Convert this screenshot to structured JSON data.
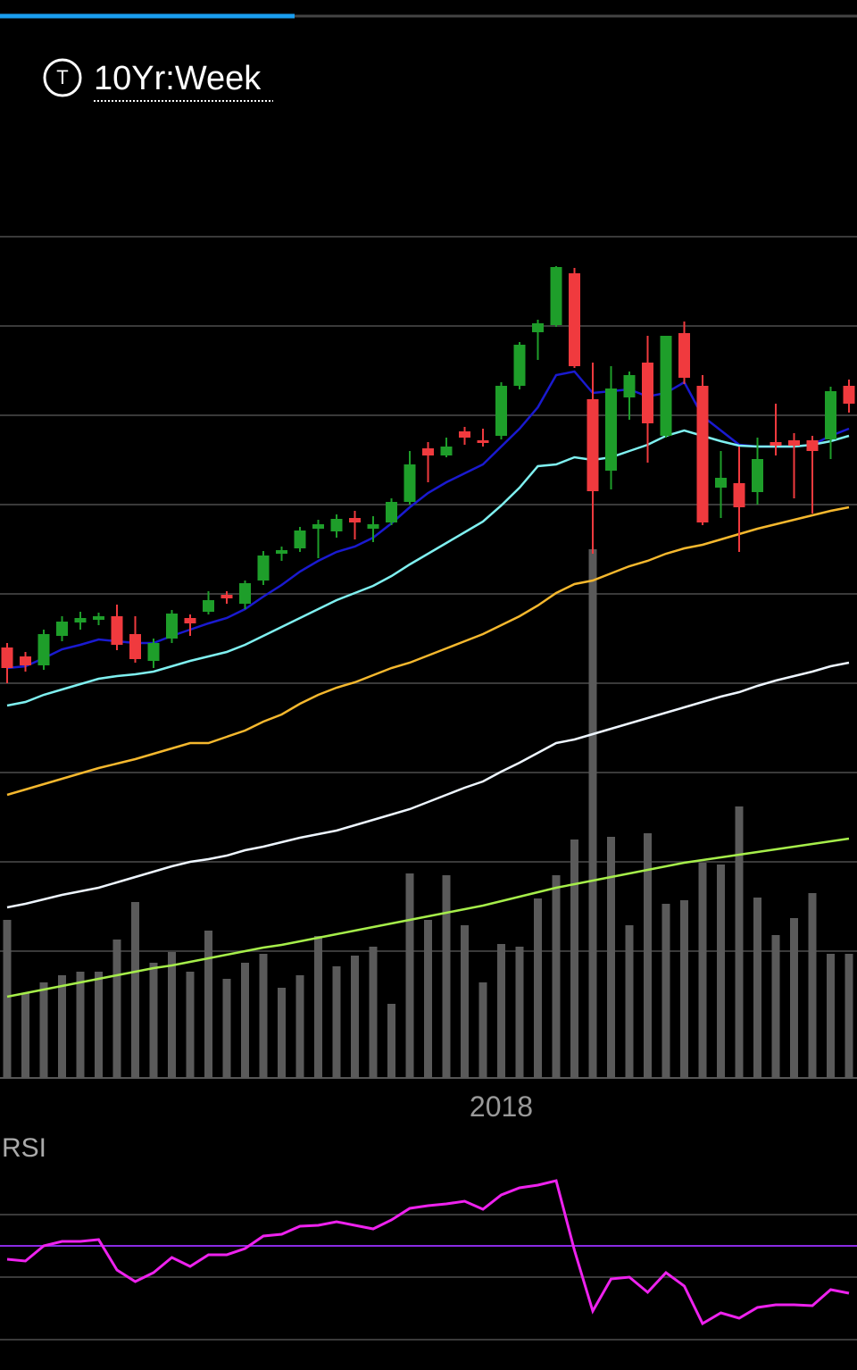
{
  "header": {
    "icon": "T",
    "period": "10Yr:Week"
  },
  "chart_data": [
    {
      "type": "candlestick",
      "categories": [
        null,
        null,
        null,
        null,
        null,
        null,
        null,
        null,
        null,
        null,
        null,
        null,
        null,
        null,
        null,
        null,
        null,
        null,
        null,
        null,
        null,
        null,
        null,
        null,
        null,
        null,
        null,
        "2018",
        null,
        null,
        null,
        null,
        null,
        null,
        null,
        null,
        null,
        null,
        null,
        null,
        null,
        null,
        null,
        null,
        null,
        null,
        null
      ],
      "open": [
        485,
        475,
        465,
        498,
        513,
        516,
        520,
        500,
        470,
        495,
        518,
        525,
        544,
        534,
        560,
        590,
        596,
        618,
        615,
        630,
        618,
        625,
        648,
        708,
        700,
        727,
        717,
        722,
        778,
        838,
        846,
        904,
        763,
        683,
        765,
        804,
        722,
        837,
        778,
        664,
        669,
        659,
        715,
        717,
        717,
        718,
        778
      ],
      "high": [
        490,
        480,
        505,
        520,
        525,
        524,
        533,
        520,
        495,
        527,
        522,
        548,
        548,
        560,
        593,
        598,
        620,
        628,
        634,
        638,
        632,
        652,
        705,
        715,
        720,
        732,
        730,
        782,
        827,
        852,
        912,
        910,
        804,
        800,
        794,
        834,
        834,
        850,
        790,
        705,
        710,
        720,
        758,
        725,
        722,
        777,
        785
      ],
      "low": [
        445,
        458,
        460,
        492,
        505,
        510,
        482,
        468,
        462,
        490,
        498,
        522,
        534,
        528,
        555,
        582,
        592,
        585,
        608,
        606,
        603,
        622,
        645,
        670,
        698,
        712,
        710,
        718,
        774,
        807,
        844,
        798,
        590,
        662,
        740,
        692,
        720,
        780,
        622,
        630,
        592,
        645,
        700,
        652,
        635,
        696,
        748
      ],
      "close": [
        462,
        465,
        500,
        514,
        518,
        520,
        488,
        472,
        490,
        523,
        512,
        538,
        540,
        557,
        588,
        594,
        616,
        623,
        629,
        625,
        623,
        648,
        690,
        700,
        710,
        720,
        714,
        778,
        824,
        848,
        911,
        800,
        660,
        775,
        790,
        736,
        834,
        787,
        625,
        675,
        642,
        696,
        711,
        711,
        705,
        772,
        758
      ],
      "up_color": "#1e9e2a",
      "down_color": "#f03a3e",
      "series": [
        {
          "color": "#1a1ad0",
          "values": [
            462,
            464,
            473,
            483,
            488,
            494,
            492,
            490,
            490,
            498,
            505,
            512,
            518,
            528,
            542,
            555,
            570,
            582,
            592,
            598,
            608,
            624,
            642,
            658,
            670,
            680,
            690,
            710,
            730,
            754,
            790,
            794,
            770,
            772,
            774,
            766,
            770,
            782,
            744,
            728,
            712,
            710,
            710,
            710,
            712,
            722,
            730
          ]
        },
        {
          "color": "#7ff0f0",
          "values": [
            420,
            424,
            432,
            438,
            444,
            450,
            453,
            455,
            458,
            464,
            470,
            475,
            480,
            488,
            498,
            508,
            518,
            528,
            538,
            546,
            554,
            565,
            578,
            590,
            602,
            614,
            626,
            644,
            664,
            688,
            690,
            698,
            695,
            698,
            705,
            712,
            722,
            728,
            722,
            716,
            711,
            710,
            710,
            710,
            712,
            716,
            722
          ]
        },
        {
          "color": "#f5b82e",
          "values": [
            320,
            326,
            332,
            338,
            344,
            350,
            355,
            360,
            366,
            372,
            378,
            378,
            385,
            392,
            402,
            410,
            422,
            432,
            440,
            446,
            454,
            462,
            468,
            476,
            484,
            492,
            500,
            510,
            520,
            532,
            546,
            556,
            560,
            568,
            576,
            582,
            590,
            596,
            600,
            606,
            612,
            618,
            623,
            628,
            633,
            638,
            642
          ]
        },
        {
          "color": "#eef6ff",
          "values": [
            194,
            198,
            203,
            208,
            212,
            216,
            222,
            228,
            234,
            240,
            245,
            248,
            252,
            258,
            262,
            267,
            272,
            276,
            280,
            286,
            292,
            298,
            304,
            312,
            320,
            328,
            335,
            346,
            356,
            367,
            378,
            382,
            388,
            394,
            400,
            406,
            412,
            418,
            424,
            430,
            435,
            442,
            448,
            453,
            458,
            464,
            468
          ]
        },
        {
          "color": "#a6ee4a",
          "values": [
            94,
            98,
            102,
            106,
            110,
            114,
            118,
            122,
            126,
            129,
            133,
            137,
            141,
            145,
            149,
            152,
            156,
            160,
            164,
            168,
            172,
            176,
            180,
            184,
            188,
            192,
            196,
            201,
            206,
            211,
            216,
            220,
            224,
            228,
            232,
            236,
            240,
            244,
            247,
            250,
            253,
            256,
            259,
            262,
            265,
            268,
            271
          ]
        },
        {
          "color": "#5a5a5a",
          "axis": "y2",
          "values": [
            177,
            95,
            107,
            115,
            119,
            119,
            155,
            197,
            129,
            141,
            119,
            165,
            111,
            129,
            139,
            101,
            115,
            159,
            125,
            137,
            147,
            83,
            229,
            177,
            227,
            171,
            107,
            150,
            147,
            201,
            227,
            267,
            592,
            270,
            171,
            274,
            195,
            199,
            241,
            239,
            304,
            202,
            160,
            179,
            207,
            139,
            139
          ]
        }
      ],
      "ylim": [
        0,
        950
      ],
      "yticks": [
        145,
        245,
        345,
        445,
        545,
        645,
        745,
        845,
        945
      ],
      "y2lim": [
        0,
        950
      ],
      "grid": true
    },
    {
      "type": "line",
      "title": "RSI",
      "series": [
        {
          "color": "#ee22ee",
          "values": [
            100,
            98,
            115,
            120,
            120,
            122,
            88,
            75,
            85,
            102,
            92,
            105,
            105,
            112,
            126,
            128,
            137,
            138,
            142,
            138,
            134,
            144,
            157,
            160,
            162,
            165,
            156,
            172,
            180,
            183,
            188,
            110,
            42,
            78,
            80,
            63,
            85,
            70,
            28,
            40,
            34,
            46,
            49,
            49,
            48,
            66,
            62
          ]
        }
      ],
      "ylim": [
        0,
        250
      ],
      "yticks": [
        10,
        80,
        150
      ],
      "midline": {
        "value": 115,
        "color": "#8a2be2"
      },
      "grid": true
    }
  ]
}
